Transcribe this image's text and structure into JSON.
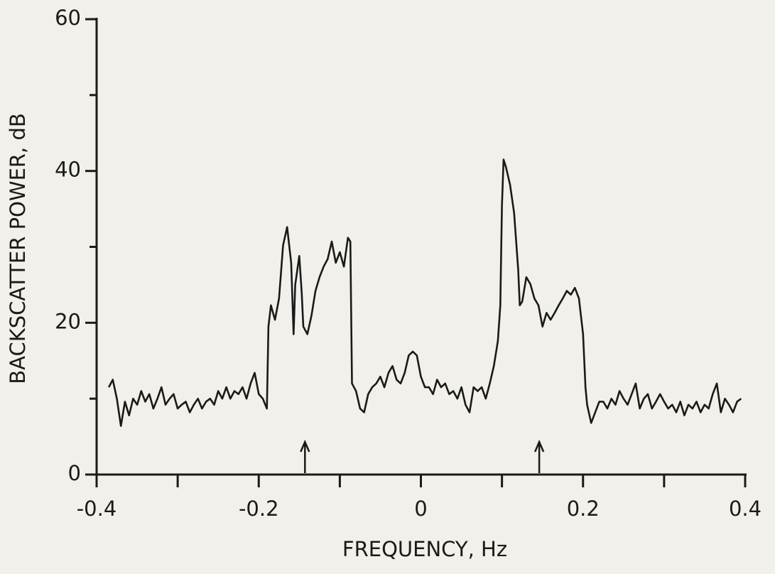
{
  "chart_data": {
    "type": "line",
    "xlabel": "FREQUENCY, Hz",
    "ylabel": "BACKSCATTER  POWER, dB",
    "xlim": [
      -0.4,
      0.4
    ],
    "xticks": [
      -0.4,
      -0.2,
      0,
      0.2,
      0.4
    ],
    "xminor_ticks": [
      -0.3,
      -0.1,
      0.1,
      0.3
    ],
    "ylim": [
      0,
      60
    ],
    "yticks": [
      0,
      20,
      40,
      60
    ],
    "yminor_ticks": [
      10,
      30,
      50
    ],
    "markers": [
      -0.143,
      0.146
    ],
    "color": "#1a1a1a",
    "x": [
      -0.385,
      -0.38,
      -0.375,
      -0.37,
      -0.365,
      -0.36,
      -0.355,
      -0.35,
      -0.345,
      -0.34,
      -0.335,
      -0.33,
      -0.325,
      -0.32,
      -0.315,
      -0.31,
      -0.305,
      -0.3,
      -0.295,
      -0.29,
      -0.285,
      -0.28,
      -0.275,
      -0.27,
      -0.265,
      -0.26,
      -0.255,
      -0.25,
      -0.245,
      -0.24,
      -0.235,
      -0.23,
      -0.225,
      -0.22,
      -0.215,
      -0.21,
      -0.205,
      -0.2,
      -0.195,
      -0.19,
      -0.188,
      -0.185,
      -0.18,
      -0.175,
      -0.17,
      -0.165,
      -0.16,
      -0.157,
      -0.155,
      -0.15,
      -0.147,
      -0.145,
      -0.14,
      -0.135,
      -0.13,
      -0.125,
      -0.12,
      -0.115,
      -0.11,
      -0.105,
      -0.1,
      -0.095,
      -0.09,
      -0.087,
      -0.085,
      -0.08,
      -0.075,
      -0.07,
      -0.065,
      -0.06,
      -0.055,
      -0.05,
      -0.045,
      -0.04,
      -0.035,
      -0.03,
      -0.025,
      -0.02,
      -0.015,
      -0.01,
      -0.005,
      0,
      0.005,
      0.01,
      0.015,
      0.02,
      0.025,
      0.03,
      0.035,
      0.04,
      0.045,
      0.05,
      0.055,
      0.06,
      0.065,
      0.07,
      0.075,
      0.08,
      0.085,
      0.09,
      0.095,
      0.098,
      0.1,
      0.102,
      0.105,
      0.11,
      0.115,
      0.12,
      0.122,
      0.125,
      0.13,
      0.135,
      0.14,
      0.145,
      0.15,
      0.155,
      0.16,
      0.165,
      0.17,
      0.175,
      0.18,
      0.185,
      0.19,
      0.195,
      0.2,
      0.203,
      0.205,
      0.21,
      0.215,
      0.22,
      0.225,
      0.23,
      0.235,
      0.24,
      0.245,
      0.25,
      0.255,
      0.26,
      0.265,
      0.27,
      0.275,
      0.28,
      0.285,
      0.29,
      0.295,
      0.3,
      0.305,
      0.31,
      0.315,
      0.32,
      0.325,
      0.33,
      0.335,
      0.34,
      0.345,
      0.35,
      0.355,
      0.36,
      0.365,
      0.37,
      0.375,
      0.38,
      0.385,
      0.39,
      0.395
    ],
    "values": [
      11.5,
      12.5,
      10,
      6.4,
      9.6,
      7.8,
      10,
      9.2,
      11,
      9.6,
      10.6,
      8.7,
      10,
      11.5,
      9.2,
      10,
      10.6,
      8.7,
      9.2,
      9.6,
      8.2,
      9.2,
      10,
      8.7,
      9.6,
      10,
      9.2,
      11,
      10,
      11.5,
      10,
      11,
      10.6,
      11.5,
      10,
      12,
      13.4,
      10.6,
      10,
      8.7,
      19.5,
      22.3,
      20.4,
      23.2,
      30.2,
      32.6,
      27.9,
      18.5,
      25,
      28.8,
      24,
      19.5,
      18.5,
      20.9,
      24.2,
      26,
      27.4,
      28.4,
      30.7,
      27.9,
      29.3,
      27.4,
      31.2,
      30.7,
      12,
      11,
      8.7,
      8.2,
      10.6,
      11.5,
      12,
      12.9,
      11.5,
      13.4,
      14.3,
      12.5,
      12,
      13.4,
      15.7,
      16.2,
      15.7,
      12.9,
      11.5,
      11.5,
      10.6,
      12.5,
      11.5,
      12,
      10.6,
      11,
      10,
      11.5,
      9.2,
      8.2,
      11.5,
      11,
      11.5,
      10,
      12,
      14.3,
      17.6,
      22.3,
      35.4,
      41.5,
      40.5,
      38.2,
      34.5,
      27,
      22.3,
      22.8,
      26,
      25.1,
      23.2,
      22.3,
      19.5,
      21.3,
      20.4,
      21.3,
      22.3,
      23.2,
      24.2,
      23.7,
      24.6,
      23.2,
      18.5,
      11.5,
      9.2,
      6.8,
      8.2,
      9.6,
      9.6,
      8.7,
      10,
      9.2,
      11,
      10,
      9.2,
      10.6,
      12,
      8.7,
      10,
      10.6,
      8.7,
      9.6,
      10.6,
      9.6,
      8.7,
      9.2,
      8.2,
      9.6,
      7.8,
      9.2,
      8.7,
      9.6,
      8.2,
      9.2,
      8.7,
      10.6,
      12,
      8.2,
      10,
      9.2,
      8.2,
      9.6,
      10
    ]
  }
}
